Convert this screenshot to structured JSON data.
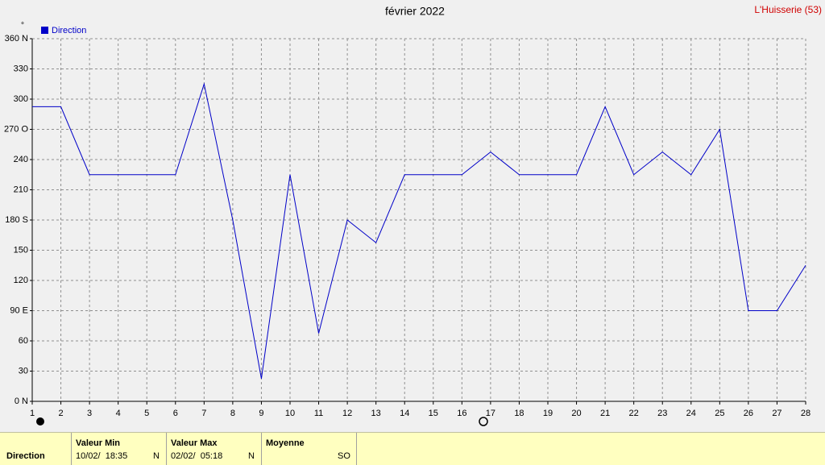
{
  "chart_data": {
    "type": "line",
    "title": "février 2022",
    "location": "L'Huisserie (53)",
    "y_unit": "°",
    "x": [
      1,
      2,
      3,
      4,
      5,
      6,
      7,
      8,
      9,
      10,
      11,
      12,
      13,
      14,
      15,
      16,
      17,
      18,
      19,
      20,
      21,
      22,
      23,
      24,
      25,
      26,
      27,
      28
    ],
    "series": [
      {
        "name": "Direction",
        "color": "#0000c8",
        "values": [
          292.5,
          292.5,
          225,
          225,
          225,
          225,
          315,
          180,
          22.5,
          225,
          67.5,
          180,
          157.5,
          225,
          225,
          225,
          247.5,
          225,
          225,
          225,
          292.5,
          225,
          247.5,
          225,
          270,
          90,
          90,
          135
        ]
      }
    ],
    "xlim": [
      1,
      28
    ],
    "xticks": [
      1,
      2,
      3,
      4,
      5,
      6,
      7,
      8,
      9,
      10,
      11,
      12,
      13,
      14,
      15,
      16,
      17,
      18,
      19,
      20,
      21,
      22,
      23,
      24,
      25,
      26,
      27,
      28
    ],
    "ylim": [
      0,
      360
    ],
    "yticks": [
      {
        "value": 0,
        "label": "0  N"
      },
      30,
      60,
      {
        "value": 90,
        "label": "90  E"
      },
      120,
      150,
      {
        "value": 180,
        "label": "180 S"
      },
      210,
      240,
      {
        "value": 270,
        "label": "270 O"
      },
      300,
      330,
      {
        "value": 360,
        "label": "360 N"
      }
    ],
    "grid": true
  },
  "summary": {
    "row_label": "Direction",
    "columns": [
      {
        "header": "Valeur Min",
        "value": "10/02/  18:35",
        "dir": "N"
      },
      {
        "header": "Valeur Max",
        "value": "02/02/  05:18",
        "dir": "N"
      },
      {
        "header": "Moyenne",
        "value": "",
        "dir": "SO"
      }
    ]
  }
}
